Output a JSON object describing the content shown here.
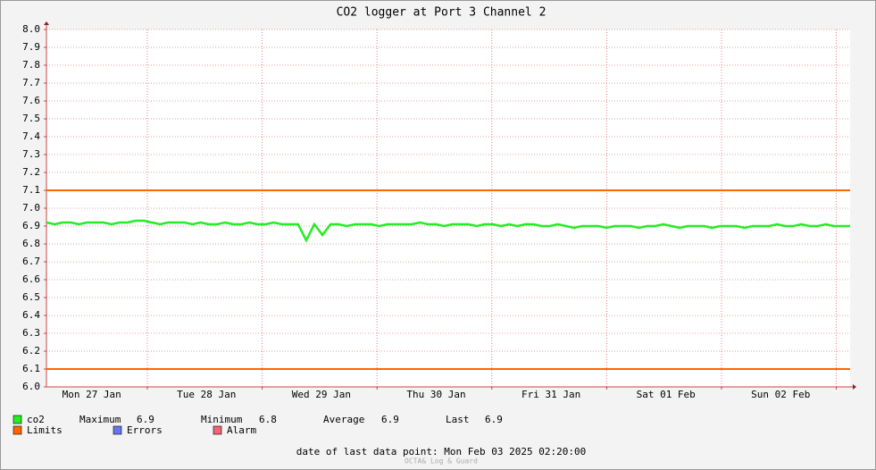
{
  "chart_data": {
    "type": "line",
    "title": "CO2 logger at Port 3 Channel 2",
    "day_labels": [
      "Mon 27 Jan",
      "Tue 28 Jan",
      "Wed 29 Jan",
      "Thu 30 Jan",
      "Fri 31 Jan",
      "Sat 01 Feb",
      "Sun 02 Feb"
    ],
    "ylim": [
      6.0,
      8.0
    ],
    "yticks": [
      {
        "value": 6.0,
        "label": "6.0"
      },
      6.1,
      6.2,
      6.3,
      6.4,
      6.5,
      6.6,
      6.7,
      6.8,
      6.9,
      {
        "value": 7.0,
        "label": "7.0"
      },
      7.1,
      7.2,
      7.3,
      7.4,
      7.5,
      7.6,
      7.7,
      7.8,
      7.9,
      {
        "value": 8.0,
        "label": "8.0"
      }
    ],
    "grid": true,
    "series": [
      {
        "name": "co2",
        "color": "#22ee22",
        "values": [
          6.92,
          6.91,
          6.92,
          6.92,
          6.91,
          6.92,
          6.92,
          6.92,
          6.91,
          6.92,
          6.92,
          6.93,
          6.93,
          6.92,
          6.91,
          6.92,
          6.92,
          6.92,
          6.91,
          6.92,
          6.91,
          6.91,
          6.92,
          6.91,
          6.91,
          6.92,
          6.91,
          6.91,
          6.92,
          6.91,
          6.91,
          6.91,
          6.82,
          6.91,
          6.85,
          6.91,
          6.91,
          6.9,
          6.91,
          6.91,
          6.91,
          6.9,
          6.91,
          6.91,
          6.91,
          6.91,
          6.92,
          6.91,
          6.91,
          6.9,
          6.91,
          6.91,
          6.91,
          6.9,
          6.91,
          6.91,
          6.9,
          6.91,
          6.9,
          6.91,
          6.91,
          6.9,
          6.9,
          6.91,
          6.9,
          6.89,
          6.9,
          6.9,
          6.9,
          6.89,
          6.9,
          6.9,
          6.9,
          6.89,
          6.9,
          6.9,
          6.91,
          6.9,
          6.89,
          6.9,
          6.9,
          6.9,
          6.89,
          6.9,
          6.9,
          6.9,
          6.89,
          6.9,
          6.9,
          6.9,
          6.91,
          6.9,
          6.9,
          6.91,
          6.9,
          6.9,
          6.91,
          6.9,
          6.9,
          6.9
        ]
      }
    ],
    "limits": {
      "name": "Limits",
      "color": "#ff6600",
      "values": [
        7.1,
        6.1
      ]
    },
    "legend_extra": [
      {
        "name": "Errors",
        "color": "#6677ee"
      },
      {
        "name": "Alarm",
        "color": "#ee6677"
      }
    ],
    "stats": [
      {
        "label": "Maximum",
        "value": 6.9
      },
      {
        "label": "Minimum",
        "value": 6.8
      },
      {
        "label": "Average",
        "value": 6.9
      },
      {
        "label": "Last",
        "value": 6.9
      }
    ],
    "footer": "date of last data point:  Mon Feb 03 2025 02:20:00",
    "watermark": "OCTA& Log & Guard"
  }
}
